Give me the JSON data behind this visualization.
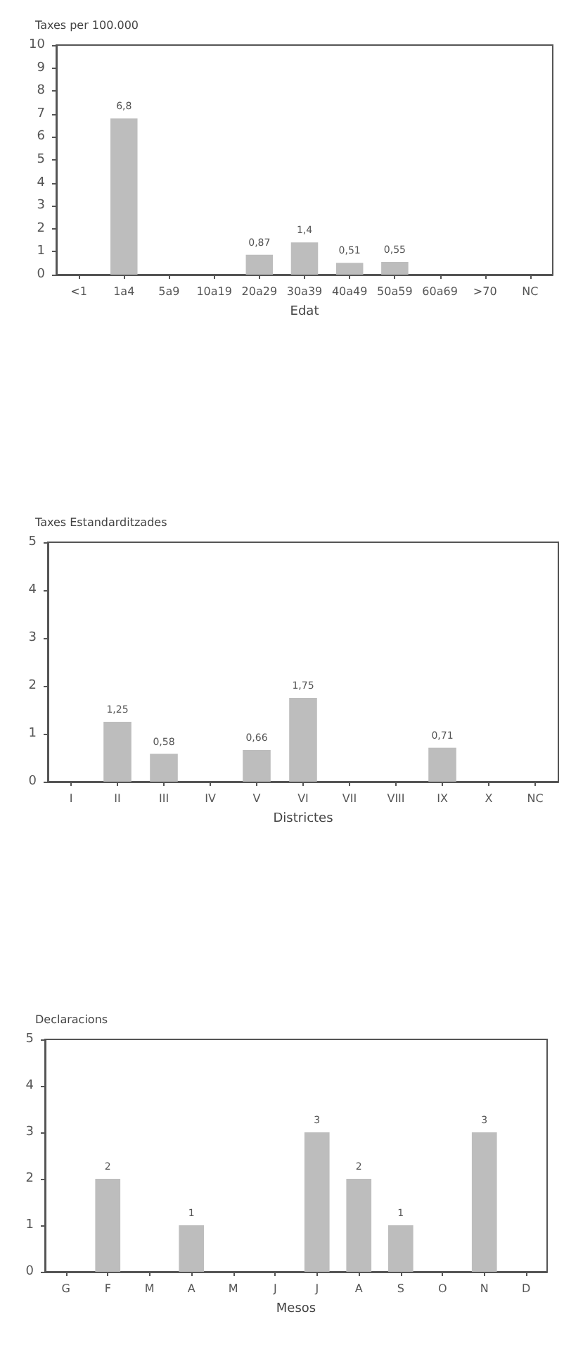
{
  "chart_data": [
    {
      "type": "bar",
      "ylabel": "Taxes per 100.000",
      "xlabel": "Edat",
      "categories": [
        "<1",
        "1a4",
        "5a9",
        "10a19",
        "20a29",
        "30a39",
        "40a49",
        "50a59",
        "60a69",
        ">70",
        "NC"
      ],
      "values": [
        0,
        6.8,
        0,
        0,
        0.87,
        1.4,
        0.51,
        0.55,
        0,
        0,
        0
      ],
      "value_labels": [
        null,
        "6,8",
        null,
        null,
        "0,87",
        "1,4",
        "0,51",
        "0,55",
        null,
        null,
        null
      ],
      "color": "#bdbdbd",
      "ylim": [
        0,
        10
      ],
      "yticks": [
        0,
        1,
        2,
        3,
        4,
        5,
        6,
        7,
        8,
        9,
        10
      ],
      "grid": false
    },
    {
      "type": "bar",
      "ylabel": "Taxes Estandarditzades",
      "xlabel": "Districtes",
      "categories": [
        "I",
        "II",
        "III",
        "IV",
        "V",
        "VI",
        "VII",
        "VIII",
        "IX",
        "X",
        "NC"
      ],
      "values": [
        0,
        1.25,
        0.58,
        0,
        0.66,
        1.75,
        0,
        0,
        0.71,
        0,
        0
      ],
      "value_labels": [
        null,
        "1,25",
        "0,58",
        null,
        "0,66",
        "1,75",
        null,
        null,
        "0,71",
        null,
        null
      ],
      "color": "#bdbdbd",
      "ylim": [
        0,
        5
      ],
      "yticks": [
        0,
        1,
        2,
        3,
        4,
        5
      ],
      "grid": false
    },
    {
      "type": "bar",
      "ylabel": "Declaracions",
      "xlabel": "Mesos",
      "categories": [
        "G",
        "F",
        "M",
        "A",
        "M",
        "J",
        "J",
        "A",
        "S",
        "O",
        "N",
        "D"
      ],
      "values": [
        0,
        2,
        0,
        1,
        0,
        0,
        3,
        2,
        1,
        0,
        3,
        0
      ],
      "value_labels": [
        null,
        "2",
        null,
        "1",
        null,
        null,
        "3",
        "2",
        "1",
        null,
        "3",
        null
      ],
      "color": "#bdbdbd",
      "ylim": [
        0,
        5
      ],
      "yticks": [
        0,
        1,
        2,
        3,
        4,
        5
      ],
      "grid": false
    }
  ]
}
